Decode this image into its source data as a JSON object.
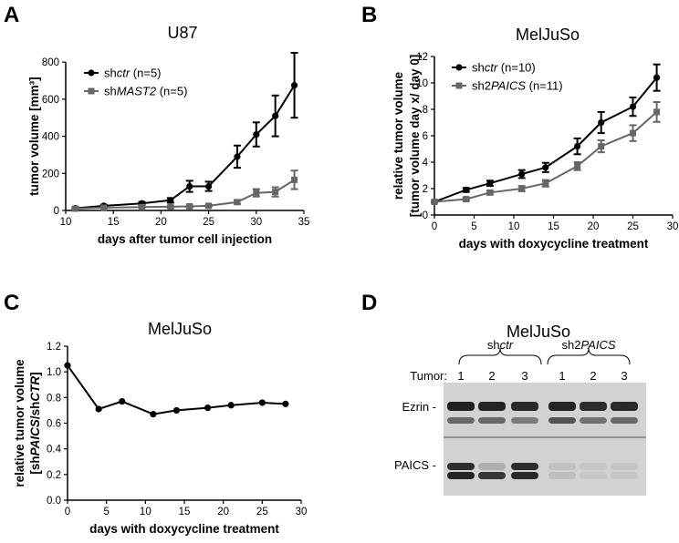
{
  "colors": {
    "ctr": "#000000",
    "kd": "#666666"
  },
  "panels": {
    "A": {
      "letter": "A"
    },
    "B": {
      "letter": "B"
    },
    "C": {
      "letter": "C"
    },
    "D": {
      "letter": "D",
      "title": "MelJuSo",
      "group_ctr_prefix": "sh",
      "group_ctr_italic": "ctr",
      "group_kd_prefix": "sh2",
      "group_kd_italic": "PAICS",
      "tumor_label": "Tumor:",
      "lanes": [
        "1",
        "2",
        "3",
        "1",
        "2",
        "3"
      ],
      "band_top_label": "Ezrin -",
      "band_bottom_label": "PAICS -"
    }
  },
  "chart_data": [
    {
      "type": "line",
      "title": "U87",
      "xlabel": "days after tumor cell injection",
      "ylabel": "tumor volume [mm³]",
      "xlim": [
        10,
        35
      ],
      "ylim": [
        0,
        850
      ],
      "xticks": [
        10,
        15,
        20,
        25,
        30,
        35
      ],
      "yticks": [
        0,
        200,
        400,
        600,
        800
      ],
      "legend": "top-left",
      "series": [
        {
          "name": "shctr (n=5)",
          "name_prefix": "sh",
          "name_italic": "ctr",
          "name_suffix": " (n=5)",
          "marker": "circle",
          "color": "#000000",
          "x": [
            11,
            14,
            18,
            21,
            23,
            25,
            28,
            30,
            32,
            34
          ],
          "y": [
            12,
            25,
            38,
            55,
            130,
            130,
            290,
            410,
            510,
            675
          ],
          "err": [
            4,
            6,
            8,
            12,
            30,
            25,
            60,
            65,
            110,
            175
          ]
        },
        {
          "name": "shMAST2 (n=5)",
          "name_prefix": "sh",
          "name_italic": "MAST2",
          "name_suffix": " (n=5)",
          "marker": "square",
          "color": "#666666",
          "x": [
            11,
            14,
            18,
            21,
            23,
            25,
            28,
            30,
            32,
            34
          ],
          "y": [
            10,
            15,
            18,
            20,
            22,
            25,
            45,
            95,
            100,
            165
          ],
          "err": [
            3,
            4,
            4,
            5,
            5,
            6,
            10,
            20,
            25,
            50
          ]
        }
      ]
    },
    {
      "type": "line",
      "title": "MelJuSo",
      "xlabel": "days with doxycycline treatment",
      "ylabel": "relative tumor volume",
      "ylabel2": "[tumor volume day x/ day 0]",
      "xlim": [
        0,
        30
      ],
      "ylim": [
        0,
        12
      ],
      "xticks": [
        0,
        5,
        10,
        15,
        20,
        25,
        30
      ],
      "yticks": [
        0,
        2,
        4,
        6,
        8,
        10,
        12
      ],
      "legend": "top-left",
      "series": [
        {
          "name": "shctr (n=10)",
          "name_prefix": "sh",
          "name_italic": "ctr",
          "name_suffix": " (n=10)",
          "marker": "circle",
          "color": "#000000",
          "x": [
            0,
            4,
            7,
            11,
            14,
            18,
            21,
            25,
            28
          ],
          "y": [
            1.0,
            1.9,
            2.4,
            3.1,
            3.6,
            5.2,
            7.0,
            8.2,
            10.4
          ],
          "err": [
            0.05,
            0.15,
            0.2,
            0.3,
            0.35,
            0.6,
            0.8,
            0.7,
            1.0
          ]
        },
        {
          "name": "sh2PAICS (n=11)",
          "name_prefix": "sh2",
          "name_italic": "PAICS",
          "name_suffix": " (n=11)",
          "marker": "square",
          "color": "#666666",
          "x": [
            0,
            4,
            7,
            11,
            14,
            18,
            21,
            25,
            28
          ],
          "y": [
            1.0,
            1.2,
            1.7,
            2.0,
            2.4,
            3.7,
            5.2,
            6.2,
            7.8
          ],
          "err": [
            0.05,
            0.12,
            0.15,
            0.2,
            0.25,
            0.3,
            0.45,
            0.6,
            0.75
          ]
        }
      ]
    },
    {
      "type": "line",
      "title": "MelJuSo",
      "xlabel": "days with doxycycline treatment",
      "ylabel": "relative tumor volume",
      "ylabel2": "[shPAICS/shCTR]",
      "ylabel2_parts": [
        {
          "text": "[sh",
          "italic": false
        },
        {
          "text": "PAICS",
          "italic": true
        },
        {
          "text": "/sh",
          "italic": false
        },
        {
          "text": "CTR",
          "italic": true
        },
        {
          "text": "]",
          "italic": false
        }
      ],
      "xlim": [
        0,
        30
      ],
      "ylim": [
        0,
        1.2
      ],
      "xticks": [
        0,
        5,
        10,
        15,
        20,
        25,
        30
      ],
      "yticks": [
        0.0,
        0.2,
        0.4,
        0.6,
        0.8,
        1.0,
        1.2
      ],
      "series": [
        {
          "marker": "circle",
          "color": "#000000",
          "x": [
            0,
            4,
            7,
            11,
            14,
            18,
            21,
            25,
            28
          ],
          "y": [
            1.05,
            0.71,
            0.77,
            0.67,
            0.7,
            0.72,
            0.74,
            0.76,
            0.75
          ],
          "err": []
        }
      ]
    }
  ]
}
